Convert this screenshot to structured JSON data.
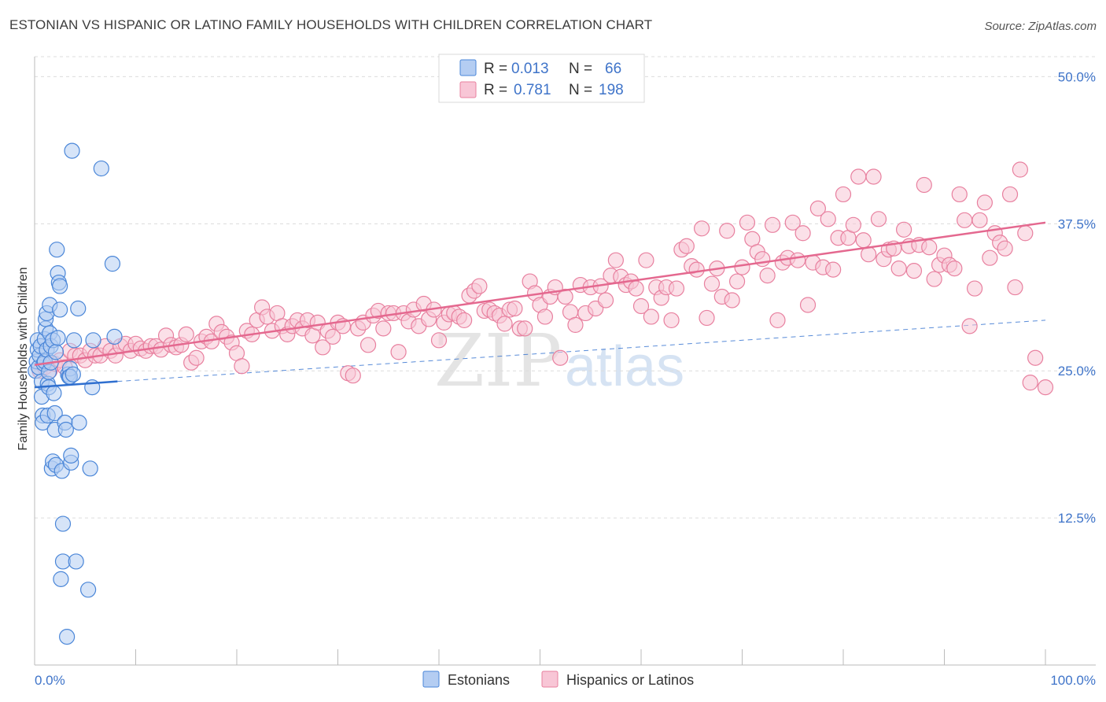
{
  "title": "ESTONIAN VS HISPANIC OR LATINO FAMILY HOUSEHOLDS WITH CHILDREN CORRELATION CHART",
  "source": "Source: ZipAtlas.com",
  "watermark": {
    "zip": "ZIP",
    "atlas": "atlas"
  },
  "colors": {
    "estonian_fill": "#b4cdf2",
    "estonian_stroke": "#4a86d8",
    "estonian_line": "#2f6fcf",
    "hispanic_fill": "#f8c6d6",
    "hispanic_stroke": "#e8809f",
    "hispanic_line": "#e4688f",
    "axis_label": "#3f74c9"
  },
  "legend": {
    "rows": [
      {
        "r_label": "R =",
        "r_value": "0.013",
        "n_label": "N =",
        "n_value": "66"
      },
      {
        "r_label": "R =",
        "r_value": "0.781",
        "n_label": "N =",
        "n_value": "198"
      }
    ]
  },
  "bottom_legend": [
    "Estonians",
    "Hispanics or Latinos"
  ],
  "chart_data": {
    "type": "scatter",
    "title": "ESTONIAN VS HISPANIC OR LATINO FAMILY HOUSEHOLDS WITH CHILDREN CORRELATION CHART",
    "xlabel": "",
    "ylabel": "Family Households with Children",
    "xlim": [
      0,
      100
    ],
    "ylim": [
      0,
      51.7
    ],
    "x_tick_labels": [
      "0.0%",
      "100.0%"
    ],
    "y_ticks": [
      12.5,
      25.0,
      37.5,
      50.0
    ],
    "y_tick_labels": [
      "12.5%",
      "25.0%",
      "37.5%",
      "50.0%"
    ],
    "grid": true,
    "legend_placement": "top-center",
    "series": [
      {
        "name": "Estonians",
        "r": 0.013,
        "n": 66,
        "trend": {
          "x": [
            0,
            8.2
          ],
          "y": [
            23.6,
            24.1
          ]
        },
        "trend_extended": {
          "x": [
            8.2,
            100
          ],
          "y": [
            24.1,
            29.3
          ]
        },
        "points": [
          [
            0.1,
            25.0
          ],
          [
            0.2,
            25.8
          ],
          [
            0.3,
            26.8
          ],
          [
            0.3,
            27.6
          ],
          [
            0.4,
            25.3
          ],
          [
            0.5,
            26.3
          ],
          [
            0.6,
            27.1
          ],
          [
            0.7,
            24.1
          ],
          [
            0.7,
            22.8
          ],
          [
            0.8,
            21.2
          ],
          [
            0.8,
            20.6
          ],
          [
            0.9,
            25.6
          ],
          [
            1.0,
            25.8
          ],
          [
            1.0,
            27.7
          ],
          [
            1.1,
            28.6
          ],
          [
            1.1,
            29.4
          ],
          [
            1.2,
            29.9
          ],
          [
            1.2,
            26.8
          ],
          [
            1.3,
            23.9
          ],
          [
            1.3,
            21.2
          ],
          [
            1.4,
            24.9
          ],
          [
            1.4,
            23.6
          ],
          [
            1.5,
            30.6
          ],
          [
            1.5,
            28.2
          ],
          [
            1.6,
            25.7
          ],
          [
            1.6,
            27.1
          ],
          [
            1.7,
            16.7
          ],
          [
            1.8,
            17.3
          ],
          [
            1.8,
            27.6
          ],
          [
            1.9,
            23.1
          ],
          [
            2.0,
            21.4
          ],
          [
            2.0,
            20.0
          ],
          [
            2.1,
            17.0
          ],
          [
            2.1,
            26.6
          ],
          [
            2.2,
            35.3
          ],
          [
            2.3,
            33.3
          ],
          [
            2.3,
            27.8
          ],
          [
            2.4,
            32.5
          ],
          [
            2.5,
            32.2
          ],
          [
            2.5,
            30.2
          ],
          [
            2.6,
            7.3
          ],
          [
            2.7,
            16.5
          ],
          [
            2.8,
            8.8
          ],
          [
            2.8,
            12.0
          ],
          [
            3.0,
            20.6
          ],
          [
            3.1,
            20.0
          ],
          [
            3.2,
            2.4
          ],
          [
            3.3,
            24.7
          ],
          [
            3.4,
            24.5
          ],
          [
            3.5,
            25.2
          ],
          [
            3.5,
            24.5
          ],
          [
            3.6,
            17.2
          ],
          [
            3.6,
            17.8
          ],
          [
            3.7,
            43.7
          ],
          [
            3.8,
            24.7
          ],
          [
            3.9,
            27.6
          ],
          [
            4.1,
            8.8
          ],
          [
            4.3,
            30.3
          ],
          [
            4.4,
            20.6
          ],
          [
            5.3,
            6.4
          ],
          [
            5.5,
            16.7
          ],
          [
            5.7,
            23.6
          ],
          [
            5.8,
            27.6
          ],
          [
            6.6,
            42.2
          ],
          [
            7.7,
            34.1
          ],
          [
            7.9,
            27.9
          ]
        ]
      },
      {
        "name": "Hispanics or Latinos",
        "r": 0.781,
        "n": 198,
        "trend": {
          "x": [
            0,
            100
          ],
          "y": [
            25.5,
            37.6
          ]
        },
        "points": [
          [
            0.5,
            25.0
          ],
          [
            1.0,
            25.3
          ],
          [
            1.5,
            25.0
          ],
          [
            2.0,
            25.6
          ],
          [
            2.5,
            25.9
          ],
          [
            3.0,
            25.3
          ],
          [
            3.5,
            26.7
          ],
          [
            4.0,
            26.3
          ],
          [
            4.5,
            26.3
          ],
          [
            5.0,
            25.9
          ],
          [
            5.5,
            26.7
          ],
          [
            6.0,
            26.3
          ],
          [
            6.5,
            26.3
          ],
          [
            7.0,
            27.1
          ],
          [
            7.5,
            26.7
          ],
          [
            8.0,
            26.3
          ],
          [
            8.5,
            27.1
          ],
          [
            9.0,
            27.3
          ],
          [
            9.5,
            26.7
          ],
          [
            10.0,
            27.3
          ],
          [
            10.5,
            26.9
          ],
          [
            11.0,
            26.7
          ],
          [
            11.5,
            27.1
          ],
          [
            12.0,
            27.1
          ],
          [
            12.5,
            26.8
          ],
          [
            13.0,
            28.0
          ],
          [
            13.5,
            27.2
          ],
          [
            14.0,
            27.0
          ],
          [
            14.5,
            27.2
          ],
          [
            15.0,
            28.1
          ],
          [
            15.5,
            25.7
          ],
          [
            16.0,
            26.1
          ],
          [
            16.5,
            27.5
          ],
          [
            17.0,
            27.9
          ],
          [
            17.5,
            27.5
          ],
          [
            18.0,
            29.0
          ],
          [
            18.5,
            28.3
          ],
          [
            19.0,
            27.9
          ],
          [
            19.5,
            27.4
          ],
          [
            20.0,
            26.5
          ],
          [
            20.5,
            25.4
          ],
          [
            21.0,
            28.4
          ],
          [
            21.5,
            28.1
          ],
          [
            22.0,
            29.3
          ],
          [
            22.5,
            30.4
          ],
          [
            23.0,
            29.6
          ],
          [
            23.5,
            28.4
          ],
          [
            24.0,
            29.9
          ],
          [
            24.5,
            28.8
          ],
          [
            25.0,
            28.1
          ],
          [
            25.5,
            28.8
          ],
          [
            26.0,
            29.3
          ],
          [
            26.5,
            28.6
          ],
          [
            27.0,
            29.3
          ],
          [
            27.5,
            28.0
          ],
          [
            28.0,
            29.1
          ],
          [
            28.5,
            27.0
          ],
          [
            29.0,
            28.4
          ],
          [
            29.5,
            27.9
          ],
          [
            30.0,
            29.1
          ],
          [
            30.5,
            28.8
          ],
          [
            31.0,
            24.8
          ],
          [
            31.5,
            24.6
          ],
          [
            32.0,
            28.6
          ],
          [
            32.5,
            29.1
          ],
          [
            33.0,
            27.2
          ],
          [
            33.5,
            29.7
          ],
          [
            34.0,
            30.1
          ],
          [
            34.5,
            28.6
          ],
          [
            35.0,
            29.9
          ],
          [
            35.5,
            29.9
          ],
          [
            36.0,
            26.6
          ],
          [
            36.5,
            29.9
          ],
          [
            37.0,
            29.2
          ],
          [
            37.5,
            30.2
          ],
          [
            38.0,
            28.8
          ],
          [
            38.5,
            30.7
          ],
          [
            39.0,
            29.4
          ],
          [
            39.5,
            30.2
          ],
          [
            40.0,
            27.6
          ],
          [
            40.5,
            29.1
          ],
          [
            41.0,
            29.8
          ],
          [
            41.5,
            29.9
          ],
          [
            42.0,
            29.6
          ],
          [
            42.5,
            29.3
          ],
          [
            43.0,
            31.4
          ],
          [
            43.5,
            31.8
          ],
          [
            44.0,
            32.2
          ],
          [
            44.5,
            30.1
          ],
          [
            45.0,
            30.2
          ],
          [
            45.5,
            29.9
          ],
          [
            46.0,
            29.7
          ],
          [
            46.5,
            29.0
          ],
          [
            47.0,
            30.2
          ],
          [
            47.5,
            30.3
          ],
          [
            48.0,
            28.6
          ],
          [
            48.5,
            28.6
          ],
          [
            49.0,
            32.6
          ],
          [
            49.5,
            31.6
          ],
          [
            50.0,
            30.6
          ],
          [
            50.5,
            29.6
          ],
          [
            51.0,
            31.3
          ],
          [
            51.5,
            32.1
          ],
          [
            52.0,
            26.1
          ],
          [
            52.5,
            31.3
          ],
          [
            53.0,
            30.0
          ],
          [
            53.5,
            28.9
          ],
          [
            54.0,
            32.3
          ],
          [
            54.5,
            29.9
          ],
          [
            55.0,
            32.1
          ],
          [
            55.5,
            30.3
          ],
          [
            56.0,
            32.2
          ],
          [
            56.5,
            31.0
          ],
          [
            57.0,
            33.1
          ],
          [
            57.5,
            34.4
          ],
          [
            58.0,
            33.0
          ],
          [
            58.5,
            32.3
          ],
          [
            59.0,
            32.6
          ],
          [
            59.5,
            32.0
          ],
          [
            60.0,
            30.5
          ],
          [
            60.5,
            34.4
          ],
          [
            61.0,
            29.6
          ],
          [
            61.5,
            32.1
          ],
          [
            62.0,
            31.2
          ],
          [
            62.5,
            32.1
          ],
          [
            63.0,
            29.3
          ],
          [
            63.5,
            32.0
          ],
          [
            64.0,
            35.3
          ],
          [
            64.5,
            35.6
          ],
          [
            65.0,
            33.9
          ],
          [
            65.5,
            33.6
          ],
          [
            66.0,
            37.1
          ],
          [
            66.5,
            29.5
          ],
          [
            67.0,
            32.4
          ],
          [
            67.5,
            33.7
          ],
          [
            68.0,
            31.3
          ],
          [
            68.5,
            36.9
          ],
          [
            69.0,
            31.0
          ],
          [
            69.5,
            32.6
          ],
          [
            70.0,
            33.8
          ],
          [
            70.5,
            37.6
          ],
          [
            71.0,
            36.2
          ],
          [
            71.5,
            35.1
          ],
          [
            72.0,
            34.5
          ],
          [
            72.5,
            33.1
          ],
          [
            73.0,
            37.4
          ],
          [
            73.5,
            29.3
          ],
          [
            74.0,
            34.2
          ],
          [
            74.5,
            34.6
          ],
          [
            75.0,
            37.6
          ],
          [
            75.5,
            34.4
          ],
          [
            76.0,
            36.7
          ],
          [
            76.5,
            30.6
          ],
          [
            77.0,
            34.2
          ],
          [
            77.5,
            38.8
          ],
          [
            78.0,
            33.8
          ],
          [
            78.5,
            37.9
          ],
          [
            79.0,
            33.6
          ],
          [
            79.5,
            36.3
          ],
          [
            80.0,
            40.0
          ],
          [
            80.5,
            36.3
          ],
          [
            81.0,
            37.4
          ],
          [
            81.5,
            41.5
          ],
          [
            82.0,
            36.1
          ],
          [
            82.5,
            34.9
          ],
          [
            83.0,
            41.5
          ],
          [
            83.5,
            37.9
          ],
          [
            84.0,
            34.5
          ],
          [
            84.5,
            35.3
          ],
          [
            85.0,
            35.4
          ],
          [
            85.5,
            33.7
          ],
          [
            86.0,
            37.0
          ],
          [
            86.5,
            35.6
          ],
          [
            87.0,
            33.5
          ],
          [
            87.5,
            35.7
          ],
          [
            88.0,
            40.8
          ],
          [
            88.5,
            35.5
          ],
          [
            89.0,
            32.8
          ],
          [
            89.5,
            34.0
          ],
          [
            90.0,
            34.8
          ],
          [
            90.5,
            34.0
          ],
          [
            91.0,
            33.7
          ],
          [
            91.5,
            40.0
          ],
          [
            92.0,
            37.8
          ],
          [
            92.5,
            28.8
          ],
          [
            93.0,
            32.0
          ],
          [
            93.5,
            37.8
          ],
          [
            94.0,
            39.3
          ],
          [
            94.5,
            34.6
          ],
          [
            95.0,
            36.7
          ],
          [
            95.5,
            35.9
          ],
          [
            96.0,
            35.4
          ],
          [
            96.5,
            40.0
          ],
          [
            97.0,
            32.1
          ],
          [
            97.5,
            42.1
          ],
          [
            98.0,
            36.7
          ],
          [
            98.5,
            24.0
          ],
          [
            99.0,
            26.1
          ],
          [
            100.0,
            23.6
          ]
        ]
      }
    ]
  }
}
